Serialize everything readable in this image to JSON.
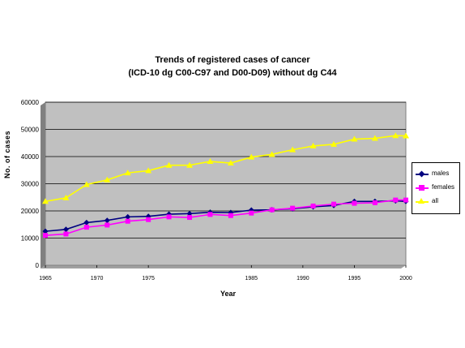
{
  "chart_data": {
    "type": "line",
    "title": "Trends of registered cases of cancer",
    "subtitle": "(ICD-10 dg C00-C97 and D00-D09) without dg C44",
    "xlabel": "Year",
    "ylabel": "No. of cases",
    "ylim": [
      0,
      60000
    ],
    "yticks": [
      "0",
      "10000",
      "20000",
      "30000",
      "40000",
      "50000",
      "60000"
    ],
    "xlim": [
      1965,
      2000
    ],
    "xticks": [
      "1965",
      "1970",
      "1975",
      "1985",
      "1990",
      "1995",
      "2000"
    ],
    "grid": "horizontal",
    "legend_position": "right",
    "plot_background": "#c0c0c0",
    "x": [
      1965,
      1967,
      1969,
      1971,
      1973,
      1975,
      1977,
      1979,
      1981,
      1983,
      1985,
      1987,
      1989,
      1991,
      1993,
      1995,
      1997,
      1999,
      2000
    ],
    "series": [
      {
        "name": "males",
        "color": "#000080",
        "marker": "diamond",
        "values": [
          12500,
          13200,
          15700,
          16500,
          17800,
          18000,
          18800,
          19000,
          19500,
          19400,
          20300,
          20400,
          20800,
          21500,
          22000,
          23500,
          23500,
          23700,
          23500
        ]
      },
      {
        "name": "females",
        "color": "#ff00ff",
        "marker": "square",
        "values": [
          11000,
          11500,
          14000,
          14800,
          16200,
          16800,
          17800,
          17600,
          18700,
          18300,
          19200,
          20400,
          21000,
          21800,
          22500,
          22800,
          23000,
          24000,
          24000
        ]
      },
      {
        "name": "all",
        "color": "#ffff00",
        "marker": "triangle",
        "values": [
          23500,
          24800,
          29700,
          31400,
          34000,
          34800,
          36800,
          36800,
          38200,
          37600,
          39800,
          40800,
          42500,
          43900,
          44500,
          46400,
          46700,
          47700,
          47600
        ]
      }
    ]
  }
}
